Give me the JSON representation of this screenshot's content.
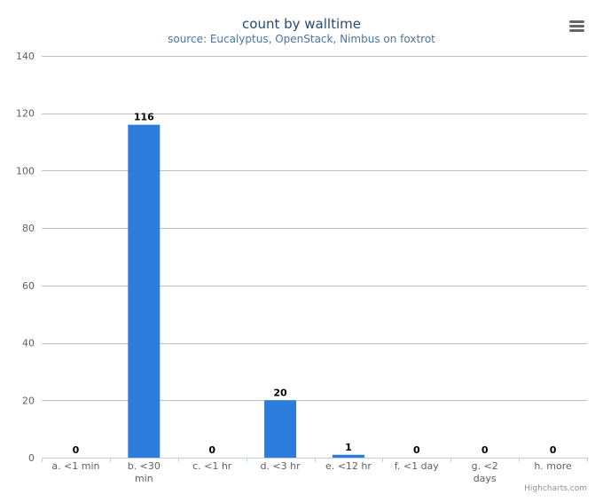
{
  "chart_data": {
    "type": "bar",
    "title": "count by walltime",
    "subtitle": "source: Eucalyptus, OpenStack, Nimbus on foxtrot",
    "categories": [
      "a. <1 min",
      "b. <30 min",
      "c. <1 hr",
      "d. <3 hr",
      "e. <12 hr",
      "f. <1 day",
      "g. <2 days",
      "h. more"
    ],
    "category_lines": [
      [
        "a. <1 min"
      ],
      [
        "b. <30",
        "min"
      ],
      [
        "c. <1 hr"
      ],
      [
        "d. <3 hr"
      ],
      [
        "e. <12 hr"
      ],
      [
        "f. <1 day"
      ],
      [
        "g. <2",
        "days"
      ],
      [
        "h. more"
      ]
    ],
    "values": [
      0,
      116,
      0,
      20,
      1,
      0,
      0,
      0
    ],
    "xlabel": "",
    "ylabel": "",
    "ylim": [
      0,
      140
    ],
    "yticks": [
      0,
      20,
      40,
      60,
      80,
      100,
      120,
      140
    ],
    "grid": true,
    "legend": "none",
    "bar_color": "#2d7cdc",
    "credit": "Highcharts.com"
  },
  "colors": {
    "grid": "#c0c0c0",
    "axis": "#c0d0e0",
    "menu_icon": "#666666"
  },
  "menu": {
    "icon": "hamburger-menu-icon"
  }
}
